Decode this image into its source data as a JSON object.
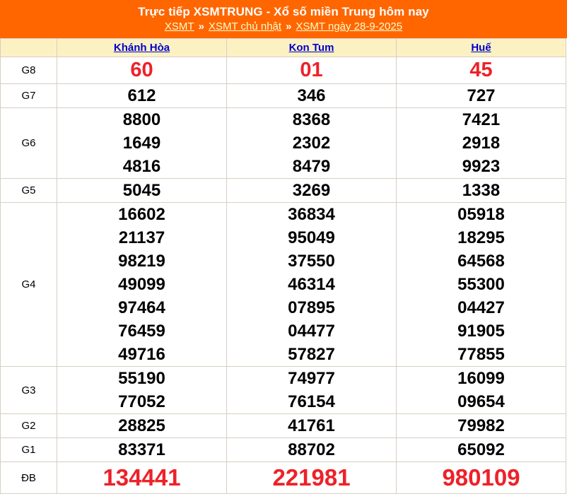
{
  "header": {
    "title": "Trực tiếp XSMTRUNG - Xổ số miền Trung hôm nay",
    "separator": "»",
    "breadcrumb": [
      {
        "label": "XSMT"
      },
      {
        "label": "XSMT chủ nhật"
      },
      {
        "label": "XSMT ngày 28-9-2025"
      }
    ]
  },
  "colors": {
    "header_bg": "#ff6600",
    "thead_bg": "#fcf1c3",
    "border": "#d6cec3",
    "result_red": "#ee2129",
    "link_blue": "#0000cc",
    "breadcrumb_link_yellow": "#ffffcc"
  },
  "results": {
    "columns": [
      "Khánh Hòa",
      "Kon Tum",
      "Huế"
    ],
    "groups": [
      {
        "label": "G8",
        "values": [
          [
            "60"
          ],
          [
            "01"
          ],
          [
            "45"
          ]
        ]
      },
      {
        "label": "G7",
        "values": [
          [
            "612"
          ],
          [
            "346"
          ],
          [
            "727"
          ]
        ]
      },
      {
        "label": "G6",
        "values": [
          [
            "8800",
            "1649",
            "4816"
          ],
          [
            "8368",
            "2302",
            "8479"
          ],
          [
            "7421",
            "2918",
            "9923"
          ]
        ]
      },
      {
        "label": "G5",
        "values": [
          [
            "5045"
          ],
          [
            "3269"
          ],
          [
            "1338"
          ]
        ]
      },
      {
        "label": "G4",
        "values": [
          [
            "16602",
            "21137",
            "98219",
            "49099",
            "97464",
            "76459",
            "49716"
          ],
          [
            "36834",
            "95049",
            "37550",
            "46314",
            "07895",
            "04477",
            "57827"
          ],
          [
            "05918",
            "18295",
            "64568",
            "55300",
            "04427",
            "91905",
            "77855"
          ]
        ]
      },
      {
        "label": "G3",
        "values": [
          [
            "55190",
            "77052"
          ],
          [
            "74977",
            "76154"
          ],
          [
            "16099",
            "09654"
          ]
        ]
      },
      {
        "label": "G2",
        "values": [
          [
            "28825"
          ],
          [
            "41761"
          ],
          [
            "79982"
          ]
        ]
      },
      {
        "label": "G1",
        "values": [
          [
            "83371"
          ],
          [
            "88702"
          ],
          [
            "65092"
          ]
        ]
      },
      {
        "label": "ĐB",
        "values": [
          [
            "134441"
          ],
          [
            "221981"
          ],
          [
            "980109"
          ]
        ]
      }
    ]
  }
}
